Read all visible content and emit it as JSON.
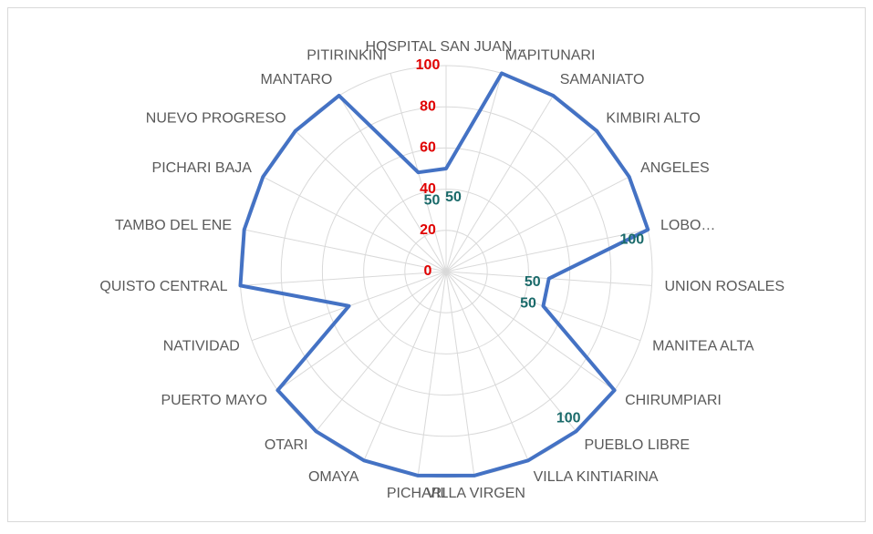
{
  "chart_data": {
    "type": "radar",
    "categories": [
      "HOSPITAL SAN JUAN…",
      "MAPITUNARI",
      "SAMANIATO",
      "KIMBIRI ALTO",
      "ANGELES",
      "LOBO…",
      "UNION ROSALES",
      "MANITEA ALTA",
      "CHIRUMPIARI",
      "PUEBLO LIBRE",
      "VILLA KINTIARINA",
      "VILLA VIRGEN",
      "PICHARI",
      "OMAYA",
      "OTARI",
      "PUERTO MAYO",
      "NATIVIDAD",
      "QUISTO CENTRAL",
      "TAMBO DEL ENE",
      "PICHARI BAJA",
      "NUEVO PROGRESO",
      "MANTARO",
      "PITIRINKINI"
    ],
    "series": [
      {
        "color": "#4472c4",
        "values": [
          50,
          100,
          100,
          100,
          100,
          100,
          50,
          50,
          100,
          100,
          100,
          100,
          100,
          100,
          100,
          100,
          50,
          100,
          100,
          100,
          100,
          100,
          50
        ]
      }
    ],
    "rlim": [
      0,
      100
    ],
    "rticks": [
      0,
      20,
      40,
      60,
      80,
      100
    ],
    "grid": true,
    "tick_color": "#e00000",
    "shown_value_labels": [
      0,
      5,
      6,
      7,
      9,
      22
    ]
  }
}
